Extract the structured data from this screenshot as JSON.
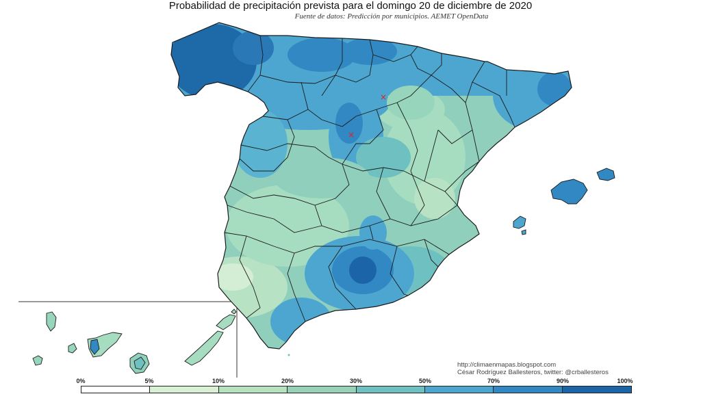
{
  "title": "Probabilidad de precipitación prevista para el domingo 20 de diciembre de 2020",
  "subtitle": "Fuente de datos: Predicción por municipios. AEMET OpenData",
  "credit": {
    "url": "http://climaenmapas.blogspot.com",
    "author": "César Rodríguez Ballesteros, twitter: @crballesteros"
  },
  "legend": {
    "ticks": [
      "0%",
      "5%",
      "10%",
      "20%",
      "30%",
      "50%",
      "70%",
      "90%",
      "100%"
    ],
    "colors": [
      "#ffffff",
      "#d9f0d4",
      "#b8e2bd",
      "#97d2b8",
      "#6fc0c0",
      "#4ca6cf",
      "#3288c2",
      "#1b64a8"
    ]
  },
  "markers": [
    "red-cross-marker",
    "red-cross-marker"
  ]
}
